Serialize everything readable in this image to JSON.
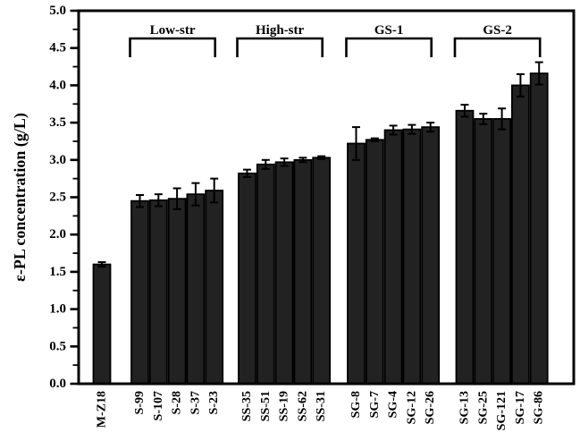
{
  "figure": {
    "background": "#ffffff",
    "axis_color": "#000000",
    "bar_fill": "#222222",
    "bar_stroke": "#000000",
    "error_bar_color": "#000000"
  },
  "chart_data": {
    "type": "bar",
    "title": "",
    "xlabel": "",
    "ylabel": "ε-PL concentration (g/L)",
    "ylim": [
      0.0,
      5.0
    ],
    "ytick_step": 0.5,
    "minor_tick_step": 0.25,
    "ytick_labels": [
      "0.0",
      "0.5",
      "1.0",
      "1.5",
      "2.0",
      "2.5",
      "3.0",
      "3.5",
      "4.0",
      "4.5",
      "5.0"
    ],
    "grid": false,
    "legend_position": "none",
    "error_bars": true,
    "categories": [
      "M-Z18",
      "S-99",
      "S-107",
      "S-28",
      "S-37",
      "S-23",
      "SS-35",
      "SS-51",
      "SS-19",
      "SS-62",
      "SS-31",
      "SG-8",
      "SG-7",
      "SG-4",
      "SG-12",
      "SG-26",
      "SG-13",
      "SG-25",
      "SG-121",
      "SG-17",
      "SG-86"
    ],
    "groups": [
      {
        "label": "",
        "bracket": false,
        "bars": [
          {
            "category": "M-Z18",
            "value": 1.6,
            "error": 0.03
          }
        ]
      },
      {
        "label": "Low-str",
        "bracket": true,
        "bars": [
          {
            "category": "S-99",
            "value": 2.45,
            "error": 0.08
          },
          {
            "category": "S-107",
            "value": 2.46,
            "error": 0.08
          },
          {
            "category": "S-28",
            "value": 2.48,
            "error": 0.14
          },
          {
            "category": "S-37",
            "value": 2.54,
            "error": 0.15
          },
          {
            "category": "S-23",
            "value": 2.59,
            "error": 0.16
          }
        ]
      },
      {
        "label": "High-str",
        "bracket": true,
        "bars": [
          {
            "category": "SS-35",
            "value": 2.82,
            "error": 0.05
          },
          {
            "category": "SS-51",
            "value": 2.94,
            "error": 0.06
          },
          {
            "category": "SS-19",
            "value": 2.97,
            "error": 0.05
          },
          {
            "category": "SS-62",
            "value": 3.0,
            "error": 0.03
          },
          {
            "category": "SS-31",
            "value": 3.03,
            "error": 0.02
          }
        ]
      },
      {
        "label": "GS-1",
        "bracket": true,
        "bars": [
          {
            "category": "SG-8",
            "value": 3.22,
            "error": 0.22
          },
          {
            "category": "SG-7",
            "value": 3.27,
            "error": 0.02
          },
          {
            "category": "SG-4",
            "value": 3.4,
            "error": 0.06
          },
          {
            "category": "SG-12",
            "value": 3.41,
            "error": 0.06
          },
          {
            "category": "SG-26",
            "value": 3.44,
            "error": 0.06
          }
        ]
      },
      {
        "label": "GS-2",
        "bracket": true,
        "bars": [
          {
            "category": "SG-13",
            "value": 3.66,
            "error": 0.08
          },
          {
            "category": "SG-25",
            "value": 3.55,
            "error": 0.07
          },
          {
            "category": "SG-121",
            "value": 3.55,
            "error": 0.14
          },
          {
            "category": "SG-17",
            "value": 4.0,
            "error": 0.15
          },
          {
            "category": "SG-86",
            "value": 4.16,
            "error": 0.15
          }
        ]
      }
    ]
  }
}
